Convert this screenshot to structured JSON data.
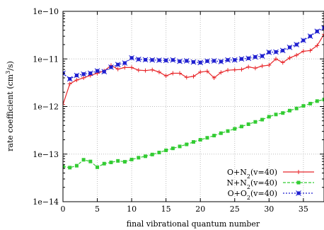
{
  "chart_data": {
    "type": "line",
    "title": "",
    "xlabel": "final vibrational quantum number",
    "ylabel": "rate coefficient (cm³/s)",
    "xlim": [
      0,
      38
    ],
    "ylim": [
      1e-14,
      1e-10
    ],
    "yscale": "log",
    "grid": true,
    "legend_position": "bottom-right",
    "x_ticks": [
      0,
      5,
      10,
      15,
      20,
      25,
      30,
      35
    ],
    "y_ticks": [
      {
        "value": 1e-14,
        "label": "1e−14"
      },
      {
        "value": 1e-13,
        "label": "1e−13"
      },
      {
        "value": 1e-12,
        "label": "1e−12"
      },
      {
        "value": 1e-11,
        "label": "1e−11"
      },
      {
        "value": 1e-10,
        "label": "1e−10"
      }
    ],
    "series": [
      {
        "label_parts": {
          "a": "O+N",
          "sub": "2",
          "b": "(v=40)"
        },
        "color": "#e8262a",
        "marker": "plus",
        "x": [
          0,
          1,
          2,
          3,
          4,
          5,
          6,
          7,
          8,
          9,
          10,
          11,
          12,
          13,
          14,
          15,
          16,
          17,
          18,
          19,
          20,
          21,
          22,
          23,
          24,
          25,
          26,
          27,
          28,
          29,
          30,
          31,
          32,
          33,
          34,
          35,
          36,
          37,
          38
        ],
        "y": [
          1.1e-12,
          3e-12,
          3.6e-12,
          4e-12,
          4.5e-12,
          5e-12,
          5.6e-12,
          7.3e-12,
          6.1e-12,
          6.6e-12,
          6.6e-12,
          5.8e-12,
          5.7e-12,
          5.9e-12,
          5.3e-12,
          4.4e-12,
          5e-12,
          5e-12,
          4.1e-12,
          4.3e-12,
          5.3e-12,
          5.5e-12,
          4e-12,
          5.2e-12,
          5.8e-12,
          5.9e-12,
          6e-12,
          6.8e-12,
          6.4e-12,
          7.1e-12,
          7.4e-12,
          1e-11,
          8.4e-12,
          1.05e-11,
          1.2e-11,
          1.45e-11,
          1.5e-11,
          1.9e-11,
          3.3e-11
        ]
      },
      {
        "label_parts": {
          "a": "N+N",
          "sub": "2",
          "b": "(v=40)"
        },
        "color": "#33cc33",
        "marker": "square",
        "x": [
          0,
          1,
          2,
          3,
          4,
          5,
          6,
          7,
          8,
          9,
          10,
          11,
          12,
          13,
          14,
          15,
          16,
          17,
          18,
          19,
          20,
          21,
          22,
          23,
          24,
          25,
          26,
          27,
          28,
          29,
          30,
          31,
          32,
          33,
          34,
          35,
          36,
          37,
          38
        ],
        "y": [
          5.5e-14,
          5.2e-14,
          5.7e-14,
          7.6e-14,
          7e-14,
          5.3e-14,
          6.3e-14,
          6.7e-14,
          7.2e-14,
          6.9e-14,
          7.7e-14,
          8.4e-14,
          9e-14,
          9.8e-14,
          1.08e-13,
          1.2e-13,
          1.32e-13,
          1.45e-13,
          1.6e-13,
          1.8e-13,
          2e-13,
          2.2e-13,
          2.45e-13,
          2.75e-13,
          3.05e-13,
          3.4e-13,
          3.8e-13,
          4.25e-13,
          4.75e-13,
          5.3e-13,
          6.1e-13,
          6.8e-13,
          7.3e-13,
          8.2e-13,
          9.1e-13,
          1.03e-12,
          1.15e-12,
          1.3e-12,
          1.4e-12
        ]
      },
      {
        "label_parts": {
          "a": "O+O",
          "sub": "2",
          "b": "(v=40)"
        },
        "color": "#2020d0",
        "marker": "star",
        "x": [
          0,
          1,
          2,
          3,
          4,
          5,
          6,
          7,
          8,
          9,
          10,
          11,
          12,
          13,
          14,
          15,
          16,
          17,
          18,
          19,
          20,
          21,
          22,
          23,
          24,
          25,
          26,
          27,
          28,
          29,
          30,
          31,
          32,
          33,
          34,
          35,
          36,
          37,
          38
        ],
        "y": [
          5e-12,
          3.8e-12,
          4.5e-12,
          4.8e-12,
          5e-12,
          5.6e-12,
          5.4e-12,
          6.7e-12,
          7.6e-12,
          8.2e-12,
          1.05e-11,
          9.8e-12,
          9.6e-12,
          9.5e-12,
          9.4e-12,
          9.3e-12,
          9.5e-12,
          8.9e-12,
          9.1e-12,
          8.6e-12,
          8.4e-12,
          9e-12,
          9.1e-12,
          8.8e-12,
          9.5e-12,
          9.5e-12,
          1e-11,
          1.03e-11,
          1.1e-11,
          1.15e-11,
          1.38e-11,
          1.4e-11,
          1.5e-11,
          1.75e-11,
          2e-11,
          2.45e-11,
          3e-11,
          3.8e-11,
          4.5e-11
        ]
      }
    ]
  }
}
